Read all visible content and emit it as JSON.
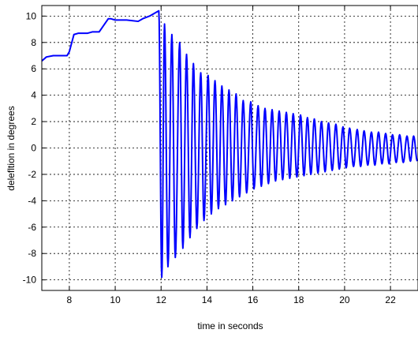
{
  "chart_data": {
    "type": "line",
    "xlabel": "time in seconds",
    "ylabel": "delefltion in degrees",
    "xlim": [
      6.8,
      23.2
    ],
    "ylim": [
      -10.8,
      10.8
    ],
    "x_ticks": [
      8,
      10,
      12,
      14,
      16,
      18,
      20,
      22
    ],
    "y_ticks": [
      -10,
      -8,
      -6,
      -4,
      -2,
      0,
      2,
      4,
      6,
      8,
      10
    ],
    "grid": true,
    "grid_style": "dashed",
    "line_color": "#0000ff",
    "series": [
      {
        "segments": [
          {
            "kind": "steady",
            "x": [
              6.8,
              7.0,
              7.3,
              7.6,
              7.9,
              8.0,
              8.2,
              8.4,
              8.8,
              9.0,
              9.3,
              9.5,
              9.7,
              9.8,
              10.0,
              10.5,
              11.0,
              11.2,
              11.5,
              11.8,
              11.9
            ],
            "y": [
              6.6,
              6.9,
              7.0,
              7.0,
              7.0,
              7.3,
              8.6,
              8.7,
              8.7,
              8.8,
              8.8,
              9.3,
              9.8,
              9.8,
              9.7,
              9.7,
              9.6,
              9.8,
              10.0,
              10.3,
              10.4
            ]
          },
          {
            "kind": "damped_oscillation",
            "start": 11.95,
            "end": 23.2,
            "period": 0.3,
            "peak_times": [
              12.15,
              12.47,
              12.81,
              13.11,
              13.41,
              13.73,
              14.05,
              14.35,
              14.65,
              14.96,
              15.27,
              15.58,
              15.91,
              16.23,
              16.53,
              16.84,
              17.15,
              17.46,
              17.76,
              18.08,
              18.38,
              18.68,
              18.99,
              19.3,
              19.62,
              19.93,
              20.22,
              20.55,
              20.85,
              21.17,
              21.48,
              21.79,
              22.09,
              22.4,
              22.72,
              23.01
            ],
            "peaks": [
              9.4,
              8.6,
              8.0,
              7.1,
              6.4,
              5.7,
              5.5,
              5.1,
              4.7,
              4.4,
              4.1,
              3.6,
              3.5,
              3.2,
              3.0,
              2.9,
              2.8,
              2.7,
              2.6,
              2.5,
              2.3,
              2.2,
              2.0,
              1.9,
              1.8,
              1.6,
              1.5,
              1.4,
              1.3,
              1.2,
              1.2,
              1.1,
              1.0,
              1.0,
              0.9,
              0.9
            ],
            "trough_times": [
              12.03,
              12.3,
              12.62,
              12.95,
              13.26,
              13.56,
              13.87,
              14.19,
              14.5,
              14.81,
              15.11,
              15.42,
              15.73,
              16.05,
              16.37,
              16.68,
              16.99,
              17.3,
              17.61,
              17.92,
              18.23,
              18.53,
              18.84,
              19.15,
              19.46,
              19.77,
              20.07,
              20.39,
              20.7,
              21.01,
              21.32,
              21.63,
              21.94,
              22.25,
              22.56,
              22.87,
              23.17
            ],
            "troughs": [
              -9.8,
              -9.0,
              -8.3,
              -7.6,
              -6.8,
              -6.1,
              -5.5,
              -5.0,
              -4.6,
              -4.3,
              -4.0,
              -3.7,
              -3.4,
              -3.1,
              -2.9,
              -2.7,
              -2.5,
              -2.4,
              -2.3,
              -2.2,
              -2.1,
              -2.0,
              -1.9,
              -1.8,
              -1.7,
              -1.6,
              -1.5,
              -1.4,
              -1.4,
              -1.3,
              -1.3,
              -1.2,
              -1.2,
              -1.1,
              -1.1,
              -1.0,
              -1.0
            ]
          }
        ]
      }
    ]
  }
}
